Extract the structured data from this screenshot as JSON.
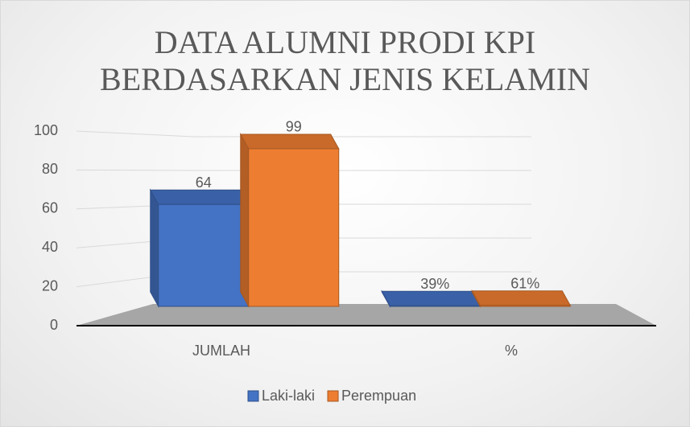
{
  "chart_data": {
    "type": "bar3d",
    "title": "DATA ALUMNI PRODI KPI BERDASARKAN JENIS KELAMIN",
    "categories": [
      "JUMLAH",
      "%"
    ],
    "series": [
      {
        "name": "Laki-laki",
        "color": "#4472c4",
        "values": [
          64,
          0.39
        ],
        "value_labels": [
          "64",
          "39%"
        ]
      },
      {
        "name": "Perempuan",
        "color": "#ed7d31",
        "values": [
          99,
          0.61
        ],
        "value_labels": [
          "99",
          "61%"
        ]
      }
    ],
    "ylim": [
      0,
      100
    ],
    "yticks": [
      0,
      20,
      40,
      60,
      80,
      100
    ],
    "grid": true,
    "legend": "bottom"
  }
}
